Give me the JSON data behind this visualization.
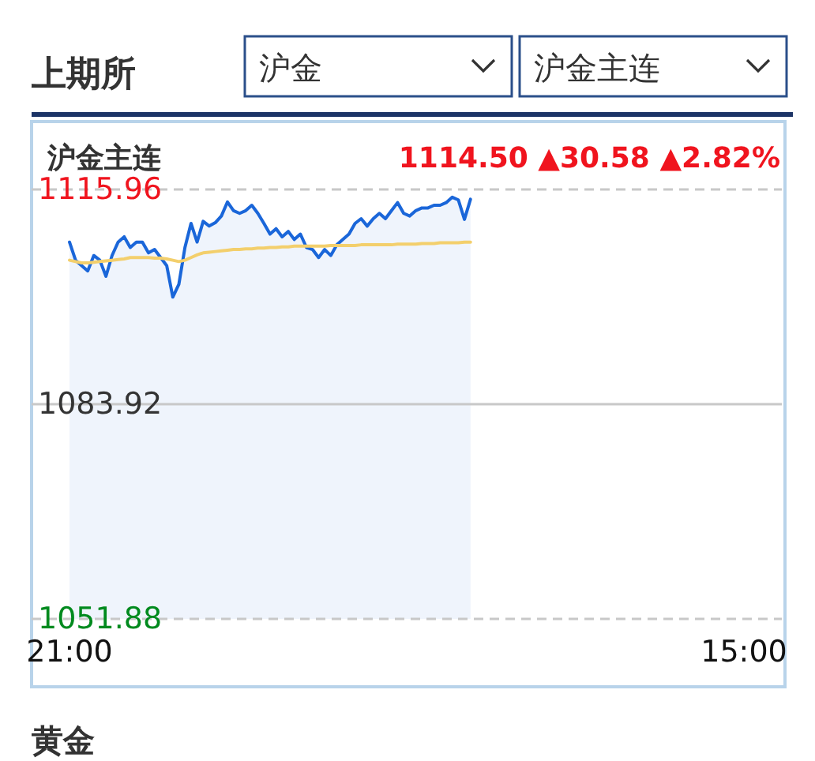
{
  "chart_data": {
    "type": "line",
    "title": "上期所",
    "subtitle": "沪金主连",
    "annotations": [
      "沪金",
      "沪金主连",
      "1114.50",
      "▲30.58",
      "▲2.82%",
      "黄金"
    ],
    "categories": [
      "21:00",
      null,
      null,
      null,
      null,
      null,
      null,
      null,
      null,
      null,
      null,
      null,
      null,
      null,
      null,
      null,
      null,
      null,
      null,
      null,
      null,
      null,
      null,
      null,
      null,
      null,
      null,
      null,
      null,
      null,
      null,
      null,
      null,
      null,
      null,
      null,
      null,
      null,
      null,
      null,
      null,
      null,
      null,
      null,
      null,
      null,
      null,
      null,
      null,
      null,
      null,
      null,
      null,
      null,
      null,
      null,
      null,
      null,
      null,
      null,
      null,
      null,
      null,
      null,
      null,
      null,
      null,
      null,
      null,
      null,
      null,
      null,
      null,
      null,
      null,
      null,
      null,
      null,
      null,
      null,
      null,
      null,
      null,
      null,
      null,
      null,
      null,
      null,
      null,
      null,
      null,
      null,
      null,
      null,
      null,
      null,
      null,
      null,
      null,
      null,
      null,
      null,
      null,
      null,
      null,
      null,
      null,
      null,
      null,
      null,
      null,
      "15:00"
    ],
    "series": [
      {
        "type": "area",
        "color": "#1a66d9",
        "values": [
          1108.1,
          1105.4,
          1104.6,
          1103.8,
          1106.1,
          1105.4,
          1103.0,
          1106.1,
          1108.1,
          1108.9,
          1107.3,
          1108.1,
          1108.1,
          1106.5,
          1107.0,
          1105.8,
          1104.6,
          1099.9,
          1101.8,
          1107.3,
          1110.9,
          1108.1,
          1111.2,
          1110.5,
          1111.0,
          1112.0,
          1114.1,
          1112.8,
          1112.4,
          1112.8,
          1113.6,
          1112.4,
          1110.9,
          1109.3,
          1110.1,
          1108.9,
          1109.7,
          1108.5,
          1109.3,
          1107.3,
          1107.0,
          1105.8,
          1107.0,
          1106.1,
          1107.7,
          1108.5,
          1109.3,
          1110.9,
          1111.6,
          1110.5,
          1111.6,
          1112.4,
          1111.6,
          1112.8,
          1114.0,
          1112.4,
          1112.0,
          1112.8,
          1113.2,
          1113.2,
          1113.6,
          1113.6,
          1114.0,
          1114.8,
          1114.4,
          1111.5,
          1114.5,
          null,
          null,
          null,
          null,
          null,
          null,
          null,
          null,
          null,
          null,
          null,
          null,
          null,
          null,
          null,
          null,
          null,
          null,
          null,
          null,
          null,
          null,
          null,
          null,
          null,
          null,
          null,
          null,
          null,
          null,
          null,
          null,
          null,
          null,
          null,
          null,
          null,
          null,
          null,
          null,
          null,
          null,
          null,
          null,
          null
        ]
      },
      {
        "type": "line",
        "color": "#f3cf6c",
        "values": [
          1105.4,
          1105.2,
          1105.0,
          1105.0,
          1105.1,
          1105.2,
          1105.3,
          1105.4,
          1105.5,
          1105.6,
          1105.8,
          1105.8,
          1105.8,
          1105.8,
          1105.7,
          1105.7,
          1105.6,
          1105.4,
          1105.2,
          1105.4,
          1105.8,
          1106.2,
          1106.5,
          1106.6,
          1106.7,
          1106.8,
          1106.9,
          1107.0,
          1107.0,
          1107.1,
          1107.1,
          1107.2,
          1107.2,
          1107.3,
          1107.3,
          1107.4,
          1107.4,
          1107.5,
          1107.5,
          1107.5,
          1107.5,
          1107.5,
          1107.5,
          1107.6,
          1107.6,
          1107.6,
          1107.6,
          1107.6,
          1107.7,
          1107.7,
          1107.7,
          1107.7,
          1107.7,
          1107.7,
          1107.8,
          1107.8,
          1107.8,
          1107.8,
          1107.9,
          1107.9,
          1107.9,
          1108.0,
          1108.0,
          1108.0,
          1108.0,
          1108.1,
          1108.1,
          null,
          null,
          null,
          null,
          null,
          null,
          null,
          null,
          null,
          null,
          null,
          null,
          null,
          null,
          null,
          null,
          null,
          null,
          null,
          null,
          null,
          null,
          null,
          null,
          null,
          null,
          null,
          null,
          null,
          null,
          null,
          null,
          null,
          null,
          null,
          null,
          null,
          null,
          null,
          null,
          null,
          null,
          null,
          null,
          null
        ]
      }
    ],
    "ylim": [
      1051.88,
      1115.96
    ],
    "yticks": [
      1051.88,
      1083.92,
      1115.96
    ],
    "ref_lines": [
      {
        "axis": "y",
        "value": 1083.92,
        "color": "#c8c8c8"
      }
    ],
    "grid": false
  }
}
